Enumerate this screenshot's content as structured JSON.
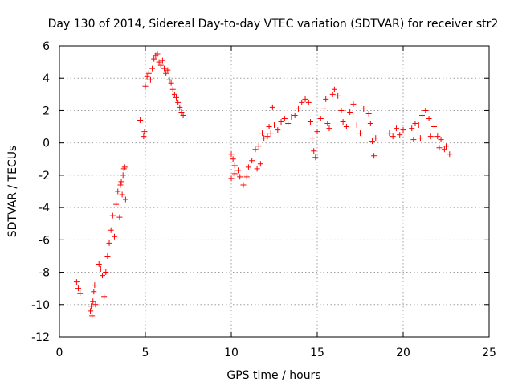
{
  "chart_data": {
    "type": "scatter",
    "title": "Day 130 of 2014, Sidereal Day-to-day VTEC variation (SDTVAR) for receiver str2",
    "xlabel": "GPS time / hours",
    "ylabel": "SDTVAR / TECUs",
    "xlim": [
      0,
      25
    ],
    "ylim": [
      -12,
      6
    ],
    "xticks": [
      0,
      5,
      10,
      15,
      20,
      25
    ],
    "yticks": [
      -12,
      -10,
      -8,
      -6,
      -4,
      -2,
      0,
      2,
      4,
      6
    ],
    "grid": true,
    "marker": "+",
    "color": "#ff0000",
    "series": [
      {
        "name": "SDTVAR",
        "points": [
          [
            1.0,
            -8.6
          ],
          [
            1.1,
            -9.0
          ],
          [
            1.2,
            -9.3
          ],
          [
            1.8,
            -10.4
          ],
          [
            1.85,
            -10.1
          ],
          [
            1.9,
            -10.7
          ],
          [
            1.95,
            -9.8
          ],
          [
            2.0,
            -9.2
          ],
          [
            2.05,
            -8.8
          ],
          [
            2.1,
            -10.0
          ],
          [
            2.3,
            -7.5
          ],
          [
            2.4,
            -7.8
          ],
          [
            2.5,
            -8.2
          ],
          [
            2.6,
            -9.5
          ],
          [
            2.7,
            -8.0
          ],
          [
            2.8,
            -7.0
          ],
          [
            2.9,
            -6.2
          ],
          [
            3.0,
            -5.4
          ],
          [
            3.1,
            -4.5
          ],
          [
            3.2,
            -5.8
          ],
          [
            3.3,
            -3.8
          ],
          [
            3.4,
            -3.0
          ],
          [
            3.5,
            -4.6
          ],
          [
            3.55,
            -2.6
          ],
          [
            3.6,
            -2.4
          ],
          [
            3.65,
            -3.2
          ],
          [
            3.7,
            -2.0
          ],
          [
            3.75,
            -1.6
          ],
          [
            3.8,
            -1.5
          ],
          [
            3.85,
            -3.5
          ],
          [
            4.7,
            1.4
          ],
          [
            4.9,
            0.4
          ],
          [
            4.95,
            0.7
          ],
          [
            5.0,
            3.5
          ],
          [
            5.1,
            4.1
          ],
          [
            5.2,
            4.3
          ],
          [
            5.3,
            3.9
          ],
          [
            5.4,
            4.6
          ],
          [
            5.5,
            5.2
          ],
          [
            5.6,
            5.4
          ],
          [
            5.7,
            5.5
          ],
          [
            5.8,
            5.0
          ],
          [
            5.9,
            4.8
          ],
          [
            6.0,
            5.1
          ],
          [
            6.1,
            4.6
          ],
          [
            6.2,
            4.3
          ],
          [
            6.3,
            4.5
          ],
          [
            6.4,
            3.9
          ],
          [
            6.5,
            3.7
          ],
          [
            6.6,
            3.3
          ],
          [
            6.7,
            3.0
          ],
          [
            6.8,
            2.8
          ],
          [
            6.9,
            2.5
          ],
          [
            7.0,
            2.2
          ],
          [
            7.1,
            1.9
          ],
          [
            7.2,
            1.7
          ],
          [
            10.0,
            -0.7
          ],
          [
            10.1,
            -1.0
          ],
          [
            10.2,
            -1.4
          ],
          [
            10.0,
            -2.2
          ],
          [
            10.2,
            -1.9
          ],
          [
            10.4,
            -1.7
          ],
          [
            10.5,
            -2.1
          ],
          [
            10.7,
            -2.6
          ],
          [
            10.9,
            -2.1
          ],
          [
            11.0,
            -1.5
          ],
          [
            11.2,
            -1.1
          ],
          [
            11.4,
            -0.4
          ],
          [
            11.5,
            -1.6
          ],
          [
            11.6,
            -0.2
          ],
          [
            11.7,
            -1.3
          ],
          [
            11.8,
            0.6
          ],
          [
            11.9,
            0.3
          ],
          [
            12.1,
            0.4
          ],
          [
            12.2,
            1.0
          ],
          [
            12.3,
            0.6
          ],
          [
            12.4,
            2.2
          ],
          [
            12.5,
            1.1
          ],
          [
            12.7,
            0.8
          ],
          [
            12.9,
            1.3
          ],
          [
            13.1,
            1.5
          ],
          [
            13.3,
            1.2
          ],
          [
            13.5,
            1.6
          ],
          [
            13.7,
            1.7
          ],
          [
            13.9,
            2.1
          ],
          [
            14.1,
            2.5
          ],
          [
            14.3,
            2.7
          ],
          [
            14.5,
            2.5
          ],
          [
            14.6,
            1.3
          ],
          [
            14.7,
            0.3
          ],
          [
            14.8,
            -0.5
          ],
          [
            14.9,
            -0.9
          ],
          [
            15.0,
            0.7
          ],
          [
            15.2,
            1.5
          ],
          [
            15.4,
            2.1
          ],
          [
            15.5,
            2.7
          ],
          [
            15.6,
            1.2
          ],
          [
            15.7,
            0.9
          ],
          [
            15.9,
            3.0
          ],
          [
            16.0,
            3.3
          ],
          [
            16.2,
            2.9
          ],
          [
            16.4,
            2.0
          ],
          [
            16.5,
            1.3
          ],
          [
            16.7,
            1.0
          ],
          [
            16.9,
            1.9
          ],
          [
            17.1,
            2.4
          ],
          [
            17.3,
            1.1
          ],
          [
            17.5,
            0.6
          ],
          [
            17.7,
            2.1
          ],
          [
            18.0,
            1.8
          ],
          [
            18.1,
            1.2
          ],
          [
            18.2,
            0.1
          ],
          [
            18.3,
            -0.8
          ],
          [
            18.4,
            0.3
          ],
          [
            19.2,
            0.6
          ],
          [
            19.4,
            0.4
          ],
          [
            19.6,
            0.9
          ],
          [
            19.8,
            0.5
          ],
          [
            20.0,
            0.8
          ],
          [
            20.5,
            0.9
          ],
          [
            20.6,
            0.2
          ],
          [
            20.7,
            1.2
          ],
          [
            20.9,
            1.1
          ],
          [
            21.0,
            0.3
          ],
          [
            21.1,
            1.7
          ],
          [
            21.3,
            2.0
          ],
          [
            21.5,
            1.5
          ],
          [
            21.6,
            0.4
          ],
          [
            21.8,
            1.0
          ],
          [
            22.0,
            0.4
          ],
          [
            22.1,
            -0.3
          ],
          [
            22.2,
            0.2
          ],
          [
            22.4,
            -0.4
          ],
          [
            22.5,
            -0.2
          ],
          [
            22.7,
            -0.7
          ]
        ]
      }
    ]
  }
}
